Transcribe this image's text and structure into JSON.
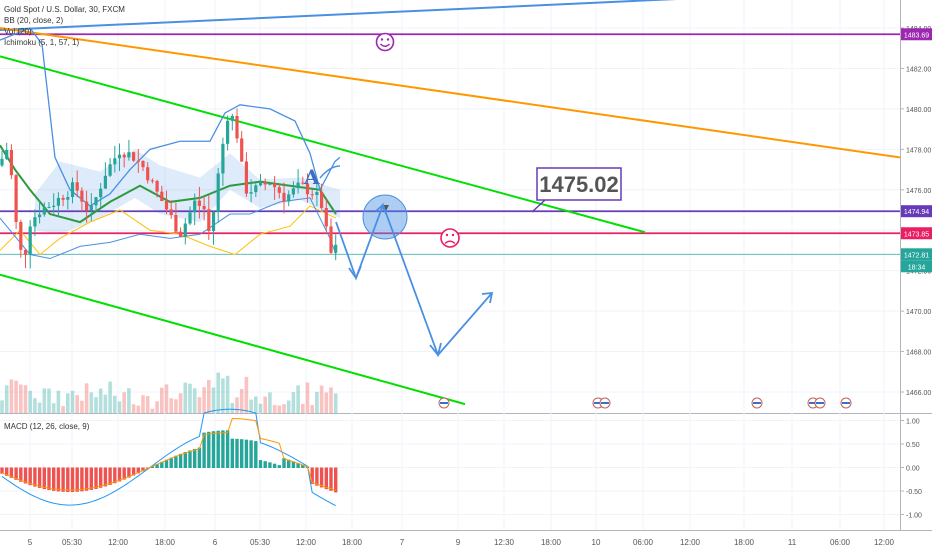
{
  "legend": {
    "title": "Gold Spot / U.S. Dollar, 30, FXCM",
    "indicators": [
      "BB (20, close, 2)",
      "Vol (20)",
      "Ichimoku (5, 1, 57, 1)"
    ]
  },
  "macd_label": "MACD (12, 26, close, 9)",
  "callout": "1475.02",
  "marker_a": "A",
  "chart_data": [
    {
      "type": "line",
      "name": "price-panel",
      "ylim": [
        1465,
        1484.5
      ],
      "ticks": [
        "1484.00",
        "1482.00",
        "1480.00",
        "1478.00",
        "1476.00",
        "1474.00",
        "1472.00",
        "1470.00",
        "1468.00",
        "1466.00"
      ],
      "tick_values": [
        1484,
        1482,
        1480,
        1478,
        1476,
        1474,
        1472,
        1470,
        1468,
        1466
      ],
      "price_badges": [
        {
          "label": "1483.69",
          "value": 1483.69,
          "color": "#9c27b0"
        },
        {
          "label": "1474.94",
          "value": 1474.94,
          "color": "#673ab7"
        },
        {
          "label": "1473.85",
          "value": 1473.85,
          "color": "#e91e63"
        },
        {
          "label": "1472.81",
          "value": 1472.81,
          "color": "#26a69a"
        },
        {
          "label": "18:34",
          "value": 1472.3,
          "color": "#26a69a"
        }
      ],
      "horizontal_lines": [
        {
          "value": 1483.69,
          "color": "#9c27b0"
        },
        {
          "value": 1474.94,
          "color": "#673ab7"
        },
        {
          "value": 1473.85,
          "color": "#e91e63"
        },
        {
          "value": 1472.81,
          "color": "#26a69a"
        }
      ],
      "trend_lines": [
        {
          "color": "#4a90e2",
          "from": [
            0,
            1483.9
          ],
          "to": [
            750,
            1485.6
          ]
        },
        {
          "color": "#ff9800",
          "from": [
            0,
            1484.0
          ],
          "to": [
            900,
            1477.6
          ]
        },
        {
          "color": "#00e000",
          "from": [
            0,
            1482.6
          ],
          "to": [
            645,
            1473.9
          ]
        },
        {
          "color": "#00e000",
          "from": [
            0,
            1471.8
          ],
          "to": [
            465,
            1465.4
          ]
        }
      ]
    },
    {
      "type": "bar",
      "name": "macd-panel",
      "ylim": [
        -1.2,
        1.2
      ],
      "ticks": [
        "1.00",
        "0.50",
        "0.00",
        "-0.50",
        "-1.00"
      ],
      "tick_values": [
        1.0,
        0.5,
        0.0,
        -0.5,
        -1.0
      ]
    }
  ],
  "x_axis": {
    "labels": [
      "5",
      "05:30",
      "12:00",
      "18:00",
      "6",
      "05:30",
      "12:00",
      "18:00",
      "7",
      "9",
      "12:30",
      "18:00",
      "10",
      "06:00",
      "12:00",
      "18:00",
      "11",
      "06:00",
      "12:00"
    ]
  },
  "colors": {
    "up": "#26a69a",
    "down": "#ef5350",
    "bb": "#4a90e2",
    "kijun": "#2e9a3e",
    "tenkan": "#ffc107",
    "projection": "#4a90e2"
  }
}
